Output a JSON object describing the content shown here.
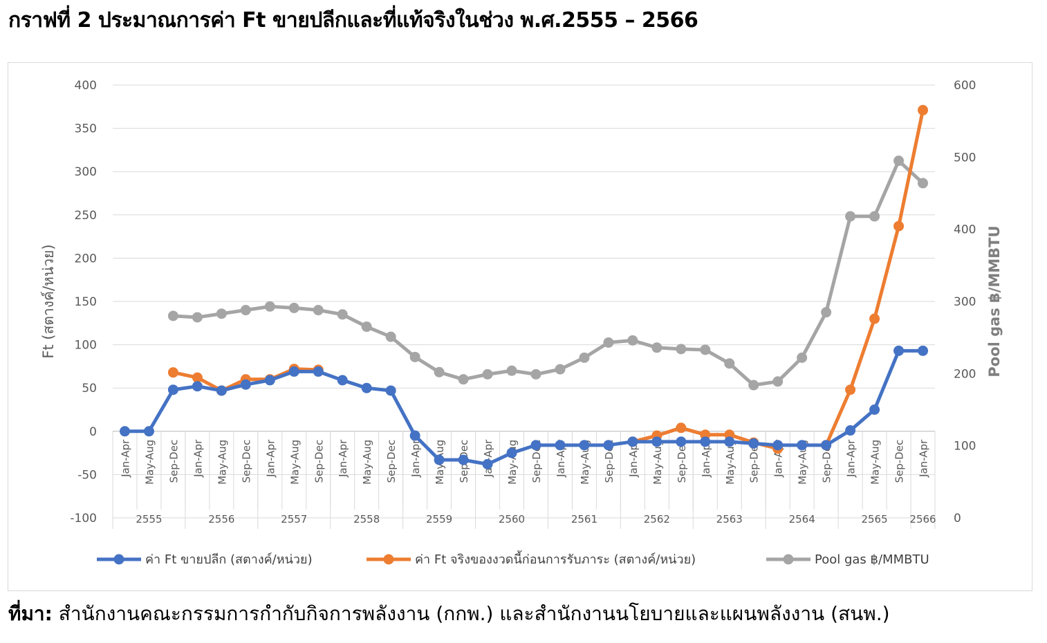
{
  "header": {
    "title": "กราฟที่ 2 ประมาณการค่า Ft ขายปลีกและที่แท้จริงในช่วง พ.ศ.2555 – 2566"
  },
  "footer": {
    "source_label": "ที่มา:",
    "source_text": " สำนักงานคณะกรรมการกำกับกิจการพลังงาน (กกพ.) และสำนักงานนโยบายและแผนพลังงาน (สนพ.)"
  },
  "chart_data": {
    "type": "line",
    "ylabel": "Ft (สตางค์/หน่วย)",
    "y2label": "Pool gas  ฿/MMBTU",
    "ylim": [
      -100,
      400
    ],
    "y2lim": [
      0,
      600
    ],
    "yticks": [
      "400",
      "350",
      "300",
      "250",
      "200",
      "150",
      "100",
      "50",
      "0",
      "-50",
      "-100"
    ],
    "y2ticks": [
      "600",
      "500",
      "400",
      "300",
      "200",
      "100",
      "0"
    ],
    "categories": [
      "Jan-Apr",
      "May-Aug",
      "Sep-Dec",
      "Jan-Apr",
      "May-Aug",
      "Sep-Dec",
      "Jan-Apr",
      "May-Aug",
      "Sep-Dec",
      "Jan-Apr",
      "May-Aug",
      "Sep-Dec",
      "Jan-Apr",
      "May-Aug",
      "Sep-Dec",
      "Jan-Apr",
      "May-Aug",
      "Sep-Dec",
      "Jan-Apr",
      "May-Aug",
      "Sep-Dec",
      "Jan-Apr",
      "May-Aug",
      "Sep-Dec",
      "Jan-Apr",
      "May-Aug",
      "Sep-Dec",
      "Jan-Apr",
      "May-Aug",
      "Sep-Dec",
      "Jan-Apr",
      "May-Aug",
      "Sep-Dec",
      "Jan-Apr"
    ],
    "years": [
      "2555",
      "2556",
      "2557",
      "2558",
      "2559",
      "2560",
      "2561",
      "2562",
      "2563",
      "2564",
      "2565",
      "2566"
    ],
    "grid": true,
    "legend_position": "bottom",
    "series": [
      {
        "name": "ค่า Ft ขายปลีก (สตางค์/หน่วย)",
        "color": "#4472c4",
        "axis": "left",
        "values": [
          0,
          0,
          48,
          52,
          47,
          54,
          59,
          69,
          69,
          59,
          50,
          47,
          -5,
          -33,
          -33,
          -38,
          -25,
          -16,
          -16,
          -16,
          -16,
          -12,
          -12,
          -12,
          -12,
          -12,
          -14,
          -16,
          -16,
          -16,
          1,
          25,
          93,
          93
        ]
      },
      {
        "name": "ค่า Ft จริงของงวดนี้ก่อนการรับภาระ (สตางค์/หน่วย)",
        "color": "#ed7d31",
        "axis": "left",
        "values": [
          null,
          null,
          68,
          62,
          47,
          60,
          60,
          72,
          71,
          null,
          null,
          null,
          null,
          null,
          null,
          null,
          null,
          null,
          null,
          null,
          null,
          -12,
          -5,
          4,
          -4,
          -4,
          -13,
          -20,
          null,
          -16,
          48,
          130,
          237,
          371
        ]
      },
      {
        "name": "Pool gas  ฿/MMBTU",
        "color": "#a5a5a5",
        "axis": "right",
        "values": [
          null,
          null,
          280,
          278,
          283,
          288,
          293,
          291,
          288,
          282,
          265,
          251,
          223,
          202,
          192,
          199,
          204,
          199,
          206,
          222,
          243,
          246,
          236,
          234,
          233,
          214,
          184,
          189,
          222,
          285,
          418,
          418,
          495,
          464
        ]
      }
    ]
  }
}
